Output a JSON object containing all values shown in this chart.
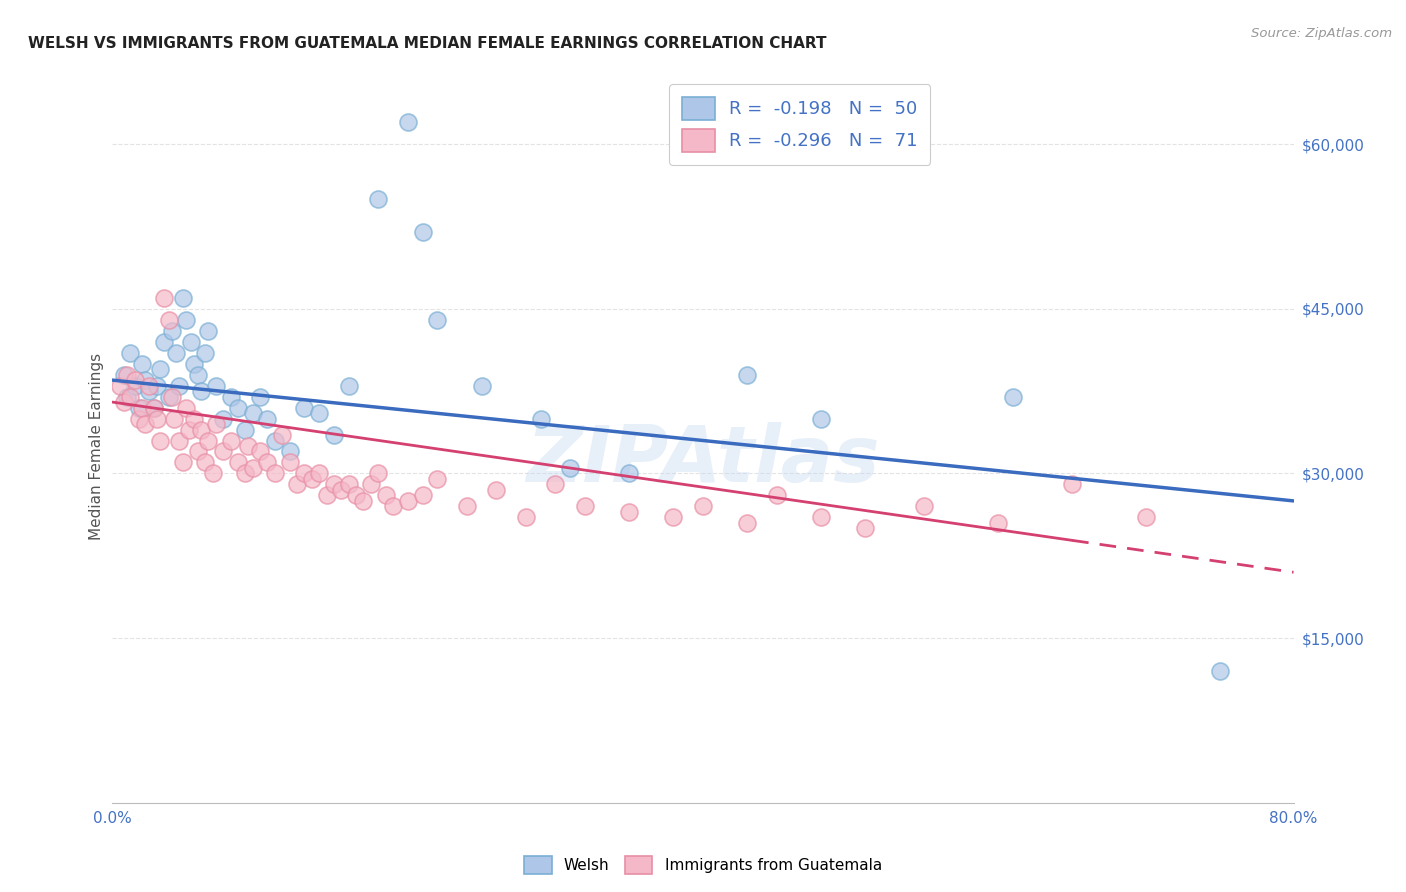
{
  "title": "WELSH VS IMMIGRANTS FROM GUATEMALA MEDIAN FEMALE EARNINGS CORRELATION CHART",
  "source": "Source: ZipAtlas.com",
  "ylabel": "Median Female Earnings",
  "watermark": "ZIPAtlas",
  "legend_r1": "-0.198",
  "legend_n1": "50",
  "legend_r2": "-0.296",
  "legend_n2": "71",
  "color_welsh_fill": "#aec6e8",
  "color_welsh_edge": "#7bafd4",
  "color_guatemala_fill": "#f5b8c8",
  "color_guatemala_edge": "#e88fa5",
  "color_blue_line": "#3a6bbf",
  "color_pink_line": "#d44070",
  "color_axis": "#4472c4",
  "x_min": 0.0,
  "x_max": 0.8,
  "y_min": 0,
  "y_max": 65000,
  "y_ticks": [
    0,
    15000,
    30000,
    45000,
    60000
  ],
  "y_tick_labels": [
    "",
    "$15,000",
    "$30,000",
    "$45,000",
    "$60,000"
  ],
  "x_ticks": [
    0.0,
    0.1,
    0.2,
    0.3,
    0.4,
    0.5,
    0.6,
    0.7,
    0.8
  ],
  "x_tick_labels": [
    "0.0%",
    "",
    "",
    "",
    "",
    "",
    "",
    "",
    "80.0%"
  ],
  "welsh_x": [
    0.008,
    0.01,
    0.012,
    0.015,
    0.018,
    0.02,
    0.022,
    0.025,
    0.028,
    0.03,
    0.032,
    0.035,
    0.038,
    0.04,
    0.043,
    0.045,
    0.048,
    0.05,
    0.053,
    0.055,
    0.058,
    0.06,
    0.063,
    0.065,
    0.07,
    0.075,
    0.08,
    0.085,
    0.09,
    0.095,
    0.1,
    0.105,
    0.11,
    0.12,
    0.13,
    0.14,
    0.15,
    0.16,
    0.18,
    0.2,
    0.21,
    0.22,
    0.25,
    0.29,
    0.31,
    0.35,
    0.43,
    0.48,
    0.61,
    0.75
  ],
  "welsh_y": [
    39000,
    37000,
    41000,
    38000,
    36000,
    40000,
    38500,
    37500,
    36000,
    38000,
    39500,
    42000,
    37000,
    43000,
    41000,
    38000,
    46000,
    44000,
    42000,
    40000,
    39000,
    37500,
    41000,
    43000,
    38000,
    35000,
    37000,
    36000,
    34000,
    35500,
    37000,
    35000,
    33000,
    32000,
    36000,
    35500,
    33500,
    38000,
    55000,
    62000,
    52000,
    44000,
    38000,
    35000,
    30500,
    30000,
    39000,
    35000,
    37000,
    12000
  ],
  "guatemala_x": [
    0.005,
    0.008,
    0.01,
    0.012,
    0.015,
    0.018,
    0.02,
    0.022,
    0.025,
    0.028,
    0.03,
    0.032,
    0.035,
    0.038,
    0.04,
    0.042,
    0.045,
    0.048,
    0.05,
    0.052,
    0.055,
    0.058,
    0.06,
    0.063,
    0.065,
    0.068,
    0.07,
    0.075,
    0.08,
    0.085,
    0.09,
    0.092,
    0.095,
    0.1,
    0.105,
    0.11,
    0.115,
    0.12,
    0.125,
    0.13,
    0.135,
    0.14,
    0.145,
    0.15,
    0.155,
    0.16,
    0.165,
    0.17,
    0.175,
    0.18,
    0.185,
    0.19,
    0.2,
    0.21,
    0.22,
    0.24,
    0.26,
    0.28,
    0.3,
    0.32,
    0.35,
    0.38,
    0.4,
    0.43,
    0.45,
    0.48,
    0.51,
    0.55,
    0.6,
    0.65,
    0.7
  ],
  "guatemala_y": [
    38000,
    36500,
    39000,
    37000,
    38500,
    35000,
    36000,
    34500,
    38000,
    36000,
    35000,
    33000,
    46000,
    44000,
    37000,
    35000,
    33000,
    31000,
    36000,
    34000,
    35000,
    32000,
    34000,
    31000,
    33000,
    30000,
    34500,
    32000,
    33000,
    31000,
    30000,
    32500,
    30500,
    32000,
    31000,
    30000,
    33500,
    31000,
    29000,
    30000,
    29500,
    30000,
    28000,
    29000,
    28500,
    29000,
    28000,
    27500,
    29000,
    30000,
    28000,
    27000,
    27500,
    28000,
    29500,
    27000,
    28500,
    26000,
    29000,
    27000,
    26500,
    26000,
    27000,
    25500,
    28000,
    26000,
    25000,
    27000,
    25500,
    29000,
    26000
  ],
  "trendline_welsh_x0": 0.0,
  "trendline_welsh_y0": 38500,
  "trendline_welsh_x1": 0.8,
  "trendline_welsh_y1": 27500,
  "trendline_guat_x0": 0.0,
  "trendline_guat_y0": 36500,
  "trendline_guat_x1": 0.8,
  "trendline_guat_y1": 21000,
  "trendline_guat_solid_end": 0.65,
  "bg_color": "#ffffff",
  "grid_color": "#e0e0e0"
}
